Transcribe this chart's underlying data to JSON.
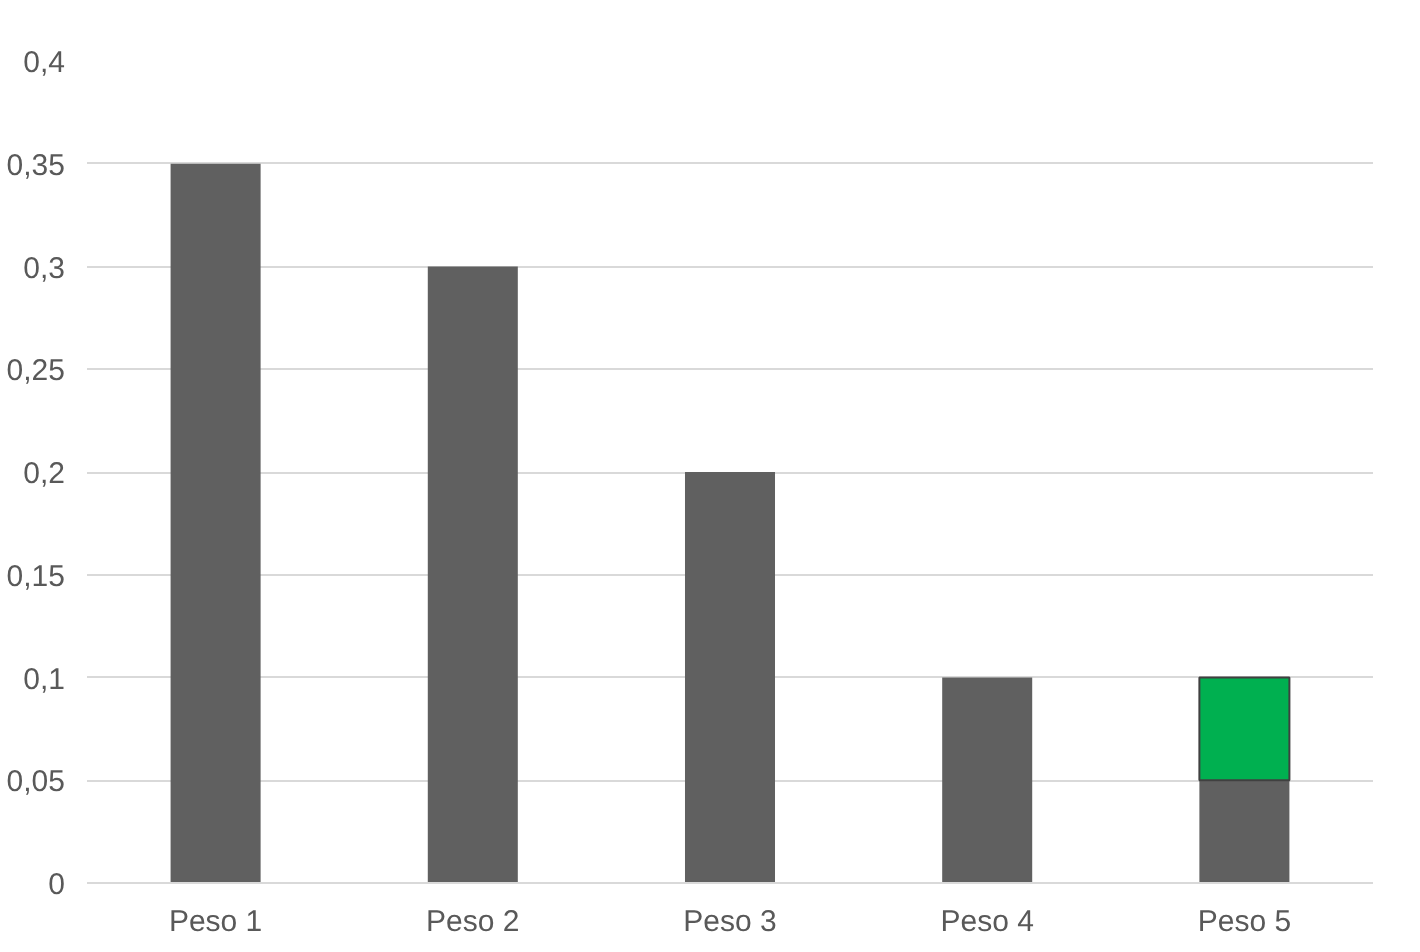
{
  "chart_data": {
    "type": "bar",
    "stacked": true,
    "categories": [
      "Peso 1",
      "Peso 2",
      "Peso 3",
      "Peso 4",
      "Peso 5"
    ],
    "series": [
      {
        "color": "#606060",
        "values": [
          0.35,
          0.3,
          0.2,
          0.1,
          0.05
        ]
      },
      {
        "color": "#00b050",
        "values": [
          null,
          null,
          null,
          null,
          0.05
        ]
      }
    ],
    "ylim": [
      0,
      0.4
    ],
    "yticks": [
      0,
      {
        "value": 0.05,
        "label": "0,05"
      },
      {
        "value": 0.1,
        "label": "0,1"
      },
      {
        "value": 0.15,
        "label": "0,15"
      },
      {
        "value": 0.2,
        "label": "0,2"
      },
      {
        "value": 0.25,
        "label": "0,25"
      },
      {
        "value": 0.3,
        "label": "0,3"
      },
      {
        "value": 0.35,
        "label": "0,35"
      },
      {
        "value": 0.4,
        "label": "0,4"
      }
    ],
    "grid": "y"
  }
}
